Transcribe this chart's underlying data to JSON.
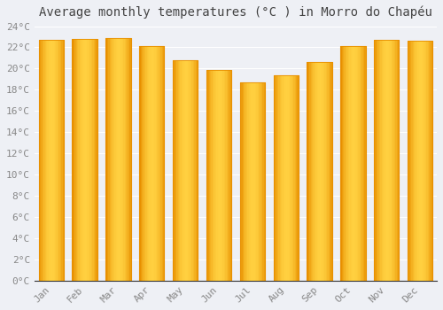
{
  "title": "Average monthly temperatures (°C ) in Morro do Chapéu",
  "months": [
    "Jan",
    "Feb",
    "Mar",
    "Apr",
    "May",
    "Jun",
    "Jul",
    "Aug",
    "Sep",
    "Oct",
    "Nov",
    "Dec"
  ],
  "values": [
    22.7,
    22.8,
    22.9,
    22.1,
    20.8,
    19.9,
    18.7,
    19.4,
    20.6,
    22.1,
    22.7,
    22.6
  ],
  "bar_color_center": "#FFD040",
  "bar_color_edge": "#E89000",
  "ylim": [
    0,
    24
  ],
  "ytick_step": 2,
  "background_color": "#EEF0F5",
  "plot_bg_color": "#EEF0F5",
  "grid_color": "#FFFFFF",
  "title_fontsize": 10,
  "tick_fontsize": 8,
  "font_family": "monospace",
  "tick_color": "#888888",
  "title_color": "#444444"
}
